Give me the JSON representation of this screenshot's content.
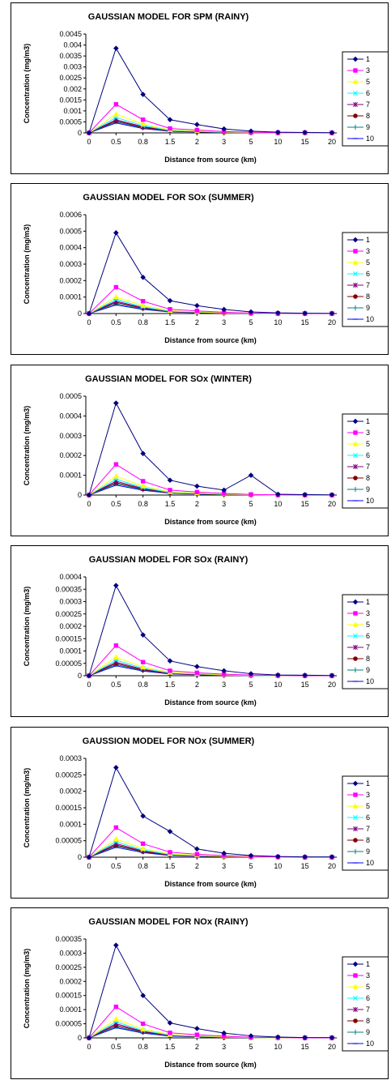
{
  "chart_data": [
    {
      "type": "line",
      "title": "GAUSSIAN MODEL FOR SPM (RAINY)",
      "xlabel": "Distance from source (km)",
      "ylabel": "Concentration (mg/m3)",
      "categories": [
        "0",
        "0.5",
        "0.8",
        "1.5",
        "2",
        "3",
        "5",
        "10",
        "15",
        "20"
      ],
      "ylim": [
        0,
        0.0045
      ],
      "yticks": [
        "0",
        "0.0005",
        "0.001",
        "0.0015",
        "0.002",
        "0.0025",
        "0.003",
        "0.0035",
        "0.004",
        "0.0045"
      ],
      "legend": "right",
      "series": [
        {
          "name": "1",
          "values": [
            0,
            0.00385,
            0.00175,
            0.0006,
            0.00038,
            0.00018,
            8e-05,
            3e-05,
            2e-05,
            1e-05
          ]
        },
        {
          "name": "3",
          "values": [
            0,
            0.0013,
            0.0006,
            0.0002,
            0.00013,
            6e-05,
            3e-05,
            1e-05,
            1e-05,
            0
          ]
        },
        {
          "name": "5",
          "values": [
            0,
            0.00085,
            0.0004,
            0.00013,
            9e-05,
            4e-05,
            2e-05,
            1e-05,
            0,
            0
          ]
        },
        {
          "name": "6",
          "values": [
            0,
            0.0007,
            0.00033,
            0.00011,
            7e-05,
            3e-05,
            2e-05,
            1e-05,
            0,
            0
          ]
        },
        {
          "name": "7",
          "values": [
            0,
            0.0006,
            0.00028,
            0.0001,
            6e-05,
            3e-05,
            1e-05,
            0,
            0,
            0
          ]
        },
        {
          "name": "8",
          "values": [
            0,
            0.00055,
            0.00025,
            9e-05,
            5e-05,
            2e-05,
            1e-05,
            0,
            0,
            0
          ]
        },
        {
          "name": "9",
          "values": [
            0,
            0.0005,
            0.00023,
            8e-05,
            5e-05,
            2e-05,
            1e-05,
            0,
            0,
            0
          ]
        },
        {
          "name": "10",
          "values": [
            0,
            0.00045,
            0.0002,
            7e-05,
            4e-05,
            2e-05,
            1e-05,
            0,
            0,
            0
          ]
        }
      ]
    },
    {
      "type": "line",
      "title": "GAUSSIAN MODEL FOR SOx (SUMMER)",
      "xlabel": "Distance from source (km)",
      "ylabel": "Concentration (mg/m3)",
      "categories": [
        "0",
        "0.5",
        "0.8",
        "1.5",
        "2",
        "3",
        "5",
        "10",
        "15",
        "20"
      ],
      "ylim": [
        0,
        0.0006
      ],
      "yticks": [
        "0",
        "0.0001",
        "0.0002",
        "0.0003",
        "0.0004",
        "0.0005",
        "0.0006"
      ],
      "legend": "right",
      "series": [
        {
          "name": "1",
          "values": [
            0,
            0.00049,
            0.00022,
            7.8e-05,
            4.8e-05,
            2.5e-05,
            1e-05,
            4e-06,
            2e-06,
            1e-06
          ]
        },
        {
          "name": "3",
          "values": [
            0,
            0.00016,
            7.5e-05,
            2.6e-05,
            1.6e-05,
            8e-06,
            3e-06,
            1e-06,
            0,
            0
          ]
        },
        {
          "name": "5",
          "values": [
            0,
            0.0001,
            4.8e-05,
            1.7e-05,
            1e-05,
            5e-06,
            2e-06,
            1e-06,
            0,
            0
          ]
        },
        {
          "name": "6",
          "values": [
            0,
            8.5e-05,
            4e-05,
            1.4e-05,
            9e-06,
            4e-06,
            2e-06,
            0,
            0,
            0
          ]
        },
        {
          "name": "7",
          "values": [
            0,
            7.5e-05,
            3.5e-05,
            1.2e-05,
            8e-06,
            4e-06,
            1e-06,
            0,
            0,
            0
          ]
        },
        {
          "name": "8",
          "values": [
            0,
            6.8e-05,
            3.2e-05,
            1.1e-05,
            7e-06,
            3e-06,
            1e-06,
            0,
            0,
            0
          ]
        },
        {
          "name": "9",
          "values": [
            0,
            6e-05,
            2.8e-05,
            1e-05,
            6e-06,
            3e-06,
            1e-06,
            0,
            0,
            0
          ]
        },
        {
          "name": "10",
          "values": [
            0,
            5.2e-05,
            2.5e-05,
            9e-06,
            5e-06,
            3e-06,
            1e-06,
            0,
            0,
            0
          ]
        }
      ]
    },
    {
      "type": "line",
      "title": "GAUSSIAN MODEL FOR SOx (WINTER)",
      "xlabel": "Distance from source (km)",
      "ylabel": "Concentration (mg/m3)",
      "categories": [
        "0",
        "0.5",
        "0.8",
        "1.5",
        "2",
        "3",
        "5",
        "10",
        "15",
        "20"
      ],
      "ylim": [
        0,
        0.0005
      ],
      "yticks": [
        "0",
        "0.0001",
        "0.0002",
        "0.0003",
        "0.0004",
        "0.0005"
      ],
      "legend": "right",
      "series": [
        {
          "name": "1",
          "values": [
            0,
            0.000465,
            0.00021,
            7.5e-05,
            4.5e-05,
            2.5e-05,
            0.0001,
            4e-06,
            2e-06,
            1e-06
          ]
        },
        {
          "name": "3",
          "values": [
            0,
            0.000155,
            7e-05,
            2.5e-05,
            1.5e-05,
            8e-06,
            3e-06,
            1e-06,
            0,
            0
          ]
        },
        {
          "name": "5",
          "values": [
            0,
            9.5e-05,
            4.5e-05,
            1.6e-05,
            1e-05,
            5e-06,
            2e-06,
            1e-06,
            0,
            0
          ]
        },
        {
          "name": "6",
          "values": [
            0,
            8e-05,
            3.8e-05,
            1.3e-05,
            8e-06,
            4e-06,
            2e-06,
            0,
            0,
            0
          ]
        },
        {
          "name": "7",
          "values": [
            0,
            7e-05,
            3.3e-05,
            1.2e-05,
            7e-06,
            4e-06,
            1e-06,
            0,
            0,
            0
          ]
        },
        {
          "name": "8",
          "values": [
            0,
            6.3e-05,
            3e-05,
            1.1e-05,
            7e-06,
            3e-06,
            1e-06,
            0,
            0,
            0
          ]
        },
        {
          "name": "9",
          "values": [
            0,
            5.7e-05,
            2.7e-05,
            1e-05,
            6e-06,
            3e-06,
            1e-06,
            0,
            0,
            0
          ]
        },
        {
          "name": "10",
          "values": [
            0,
            5e-05,
            2.4e-05,
            9e-06,
            5e-06,
            3e-06,
            1e-06,
            0,
            0,
            0
          ]
        }
      ]
    },
    {
      "type": "line",
      "title": "GAUSSIAN MODEL FOR SOx (RAINY)",
      "xlabel": "Distance from source (km)",
      "ylabel": "Concentration (mg/m3)",
      "categories": [
        "0",
        "0.5",
        "0.8",
        "1.5",
        "2",
        "3",
        "5",
        "10",
        "15",
        "20"
      ],
      "ylim": [
        0,
        0.0004
      ],
      "yticks": [
        "0",
        "0.00005",
        "0.0001",
        "0.00015",
        "0.0002",
        "0.00025",
        "0.0003",
        "0.00035",
        "0.0004"
      ],
      "legend": "right",
      "series": [
        {
          "name": "1",
          "values": [
            0,
            0.000365,
            0.000165,
            6e-05,
            3.7e-05,
            2e-05,
            8e-06,
            3e-06,
            2e-06,
            1e-06
          ]
        },
        {
          "name": "3",
          "values": [
            0,
            0.000122,
            5.5e-05,
            2e-05,
            1.2e-05,
            6e-06,
            3e-06,
            1e-06,
            0,
            0
          ]
        },
        {
          "name": "5",
          "values": [
            0,
            7.5e-05,
            3.5e-05,
            1.3e-05,
            8e-06,
            4e-06,
            2e-06,
            0,
            0,
            0
          ]
        },
        {
          "name": "6",
          "values": [
            0,
            6.3e-05,
            3e-05,
            1.1e-05,
            7e-06,
            3e-06,
            1e-06,
            0,
            0,
            0
          ]
        },
        {
          "name": "7",
          "values": [
            0,
            5.5e-05,
            2.6e-05,
            9e-06,
            6e-06,
            3e-06,
            1e-06,
            0,
            0,
            0
          ]
        },
        {
          "name": "8",
          "values": [
            0,
            5e-05,
            2.3e-05,
            8e-06,
            5e-06,
            3e-06,
            1e-06,
            0,
            0,
            0
          ]
        },
        {
          "name": "9",
          "values": [
            0,
            4.5e-05,
            2.1e-05,
            8e-06,
            5e-06,
            2e-06,
            1e-06,
            0,
            0,
            0
          ]
        },
        {
          "name": "10",
          "values": [
            0,
            4e-05,
            1.9e-05,
            7e-06,
            4e-06,
            2e-06,
            1e-06,
            0,
            0,
            0
          ]
        }
      ]
    },
    {
      "type": "line",
      "title": "GAUSSION MODEL FOR NOx (SUMMER)",
      "xlabel": "Distance from source (km)",
      "ylabel": "Concentration (mg/m3)",
      "categories": [
        "0",
        "0.5",
        "0.8",
        "1.5",
        "2",
        "3",
        "5",
        "10",
        "15",
        "20"
      ],
      "ylim": [
        0,
        0.0003
      ],
      "yticks": [
        "0",
        "0.00005",
        "0.0001",
        "0.00015",
        "0.0002",
        "0.00025",
        "0.0003"
      ],
      "legend": "right",
      "series": [
        {
          "name": "1",
          "values": [
            0,
            0.000272,
            0.000125,
            7.8e-05,
            2.5e-05,
            1.2e-05,
            5e-06,
            2e-06,
            1e-06,
            1e-06
          ]
        },
        {
          "name": "3",
          "values": [
            0,
            9e-05,
            4.1e-05,
            1.5e-05,
            9e-06,
            5e-06,
            2e-06,
            1e-06,
            0,
            0
          ]
        },
        {
          "name": "5",
          "values": [
            0,
            5.5e-05,
            2.6e-05,
            1e-05,
            6e-06,
            3e-06,
            1e-06,
            0,
            0,
            0
          ]
        },
        {
          "name": "6",
          "values": [
            0,
            4.7e-05,
            2.2e-05,
            8e-06,
            5e-06,
            3e-06,
            1e-06,
            0,
            0,
            0
          ]
        },
        {
          "name": "7",
          "values": [
            0,
            4.1e-05,
            1.9e-05,
            7e-06,
            4e-06,
            2e-06,
            1e-06,
            0,
            0,
            0
          ]
        },
        {
          "name": "8",
          "values": [
            0,
            3.7e-05,
            1.7e-05,
            6e-06,
            4e-06,
            2e-06,
            1e-06,
            0,
            0,
            0
          ]
        },
        {
          "name": "9",
          "values": [
            0,
            3.4e-05,
            1.6e-05,
            6e-06,
            4e-06,
            2e-06,
            1e-06,
            0,
            0,
            0
          ]
        },
        {
          "name": "10",
          "values": [
            0,
            3e-05,
            1.4e-05,
            5e-06,
            3e-06,
            2e-06,
            1e-06,
            0,
            0,
            0
          ]
        }
      ]
    },
    {
      "type": "line",
      "title": "GAUSSIAN MODEL FOR NOx (RAINY)",
      "xlabel": "Distance from source (km)",
      "ylabel": "Concentration (mg/m3)",
      "categories": [
        "0",
        "0.5",
        "0.8",
        "1.5",
        "2",
        "3",
        "5",
        "10",
        "15",
        "20"
      ],
      "ylim": [
        0,
        0.00035
      ],
      "yticks": [
        "0",
        "0.00005",
        "0.0001",
        "0.00015",
        "0.0002",
        "0.00025",
        "0.0003",
        "0.00035"
      ],
      "legend": "right",
      "series": [
        {
          "name": "1",
          "values": [
            0,
            0.000328,
            0.00015,
            5.3e-05,
            3.3e-05,
            1.7e-05,
            7e-06,
            3e-06,
            1e-06,
            1e-06
          ]
        },
        {
          "name": "3",
          "values": [
            0,
            0.00011,
            5e-05,
            1.8e-05,
            1.1e-05,
            6e-06,
            2e-06,
            1e-06,
            0,
            0
          ]
        },
        {
          "name": "5",
          "values": [
            0,
            6.7e-05,
            3.1e-05,
            1.1e-05,
            7e-06,
            4e-06,
            1e-06,
            0,
            0,
            0
          ]
        },
        {
          "name": "6",
          "values": [
            0,
            5.7e-05,
            2.6e-05,
            1e-05,
            6e-06,
            3e-06,
            1e-06,
            0,
            0,
            0
          ]
        },
        {
          "name": "7",
          "values": [
            0,
            5e-05,
            2.3e-05,
            8e-06,
            5e-06,
            3e-06,
            1e-06,
            0,
            0,
            0
          ]
        },
        {
          "name": "8",
          "values": [
            0,
            4.5e-05,
            2.1e-05,
            8e-06,
            5e-06,
            2e-06,
            1e-06,
            0,
            0,
            0
          ]
        },
        {
          "name": "9",
          "values": [
            0,
            4e-05,
            1.9e-05,
            7e-06,
            4e-06,
            2e-06,
            1e-06,
            0,
            0,
            0
          ]
        },
        {
          "name": "10",
          "values": [
            0,
            3.6e-05,
            1.7e-05,
            6e-06,
            4e-06,
            2e-06,
            1e-06,
            0,
            0,
            0
          ]
        }
      ]
    }
  ],
  "series_styles": [
    {
      "color": "#000080",
      "marker": "diamond"
    },
    {
      "color": "#FF00FF",
      "marker": "square"
    },
    {
      "color": "#FFFF00",
      "marker": "triangle"
    },
    {
      "color": "#00FFFF",
      "marker": "x"
    },
    {
      "color": "#800080",
      "marker": "star"
    },
    {
      "color": "#800000",
      "marker": "circle"
    },
    {
      "color": "#008080",
      "marker": "plus"
    },
    {
      "color": "#0000FF",
      "marker": "dash"
    }
  ]
}
